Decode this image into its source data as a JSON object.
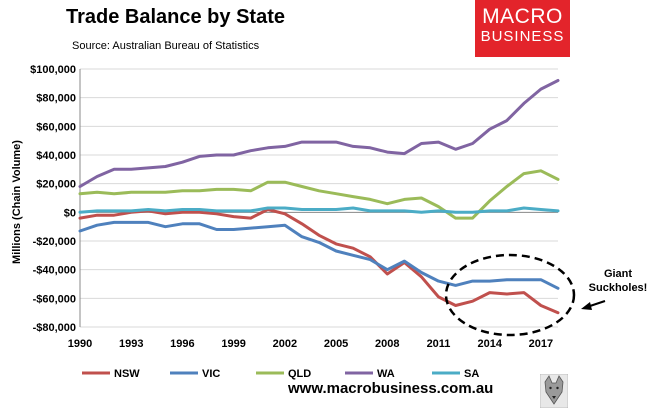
{
  "title": "Trade Balance by State",
  "source": "Source: Australian Bureau of Statistics",
  "brand": {
    "line1": "MACRO",
    "line2": "BUSINESS",
    "color": "#e3242b"
  },
  "footer_url": "www.macrobusiness.com.au",
  "annotation": {
    "line1": "Giant",
    "line2": "Suckholes!"
  },
  "chart_data": {
    "type": "line",
    "ylabel": "Millions (Chain Volume)",
    "xlabel": "",
    "ylim": [
      -80000,
      100000
    ],
    "yticks": [
      100000,
      80000,
      60000,
      40000,
      20000,
      0,
      -20000,
      -40000,
      -60000,
      -80000
    ],
    "ytick_labels": [
      "$100,000",
      "$80,000",
      "$60,000",
      "$40,000",
      "$20,000",
      "$0",
      "-$20,000",
      "-$40,000",
      "-$60,000",
      "-$80,000"
    ],
    "x": [
      1990,
      1991,
      1992,
      1993,
      1994,
      1995,
      1996,
      1997,
      1998,
      1999,
      2000,
      2001,
      2002,
      2003,
      2004,
      2005,
      2006,
      2007,
      2008,
      2009,
      2010,
      2011,
      2012,
      2013,
      2014,
      2015,
      2016,
      2017,
      2018
    ],
    "xticks": [
      1990,
      1993,
      1996,
      1999,
      2002,
      2005,
      2008,
      2011,
      2014,
      2017
    ],
    "grid": "horizontal",
    "legend_position": "bottom",
    "series": [
      {
        "name": "NSW",
        "color": "#c0504d",
        "values": [
          -4000,
          -2000,
          -2000,
          0,
          1000,
          -1000,
          0,
          0,
          -1000,
          -3000,
          -4000,
          2000,
          -1000,
          -8000,
          -16000,
          -22000,
          -25000,
          -31000,
          -43000,
          -35000,
          -45000,
          -59000,
          -65000,
          -62000,
          -56000,
          -57000,
          -56000,
          -65000,
          -70000
        ]
      },
      {
        "name": "VIC",
        "color": "#4f81bd",
        "values": [
          -13000,
          -9000,
          -7000,
          -7000,
          -7000,
          -10000,
          -8000,
          -8000,
          -12000,
          -12000,
          -11000,
          -10000,
          -9000,
          -17000,
          -21000,
          -27000,
          -30000,
          -33000,
          -40000,
          -34000,
          -42000,
          -48000,
          -51000,
          -48000,
          -48000,
          -47000,
          -47000,
          -47000,
          -53000
        ]
      },
      {
        "name": "QLD",
        "color": "#9bbb59",
        "values": [
          13000,
          14000,
          13000,
          14000,
          14000,
          14000,
          15000,
          15000,
          16000,
          16000,
          15000,
          21000,
          21000,
          18000,
          15000,
          13000,
          11000,
          9000,
          6000,
          9000,
          10000,
          4000,
          -4000,
          -4000,
          8000,
          18000,
          27000,
          29000,
          23000
        ]
      },
      {
        "name": "WA",
        "color": "#8064a2",
        "values": [
          18000,
          25000,
          30000,
          30000,
          31000,
          32000,
          35000,
          39000,
          40000,
          40000,
          43000,
          45000,
          46000,
          49000,
          49000,
          49000,
          46000,
          45000,
          42000,
          41000,
          48000,
          49000,
          44000,
          48000,
          58000,
          64000,
          76000,
          86000,
          92000
        ]
      },
      {
        "name": "SA",
        "color": "#4bacc6",
        "values": [
          0,
          1000,
          1000,
          1000,
          2000,
          1000,
          2000,
          2000,
          1000,
          1000,
          1000,
          3000,
          3000,
          2000,
          2000,
          2000,
          3000,
          1000,
          1000,
          1000,
          0,
          1000,
          0,
          0,
          1000,
          1000,
          3000,
          2000,
          1000
        ]
      }
    ]
  }
}
